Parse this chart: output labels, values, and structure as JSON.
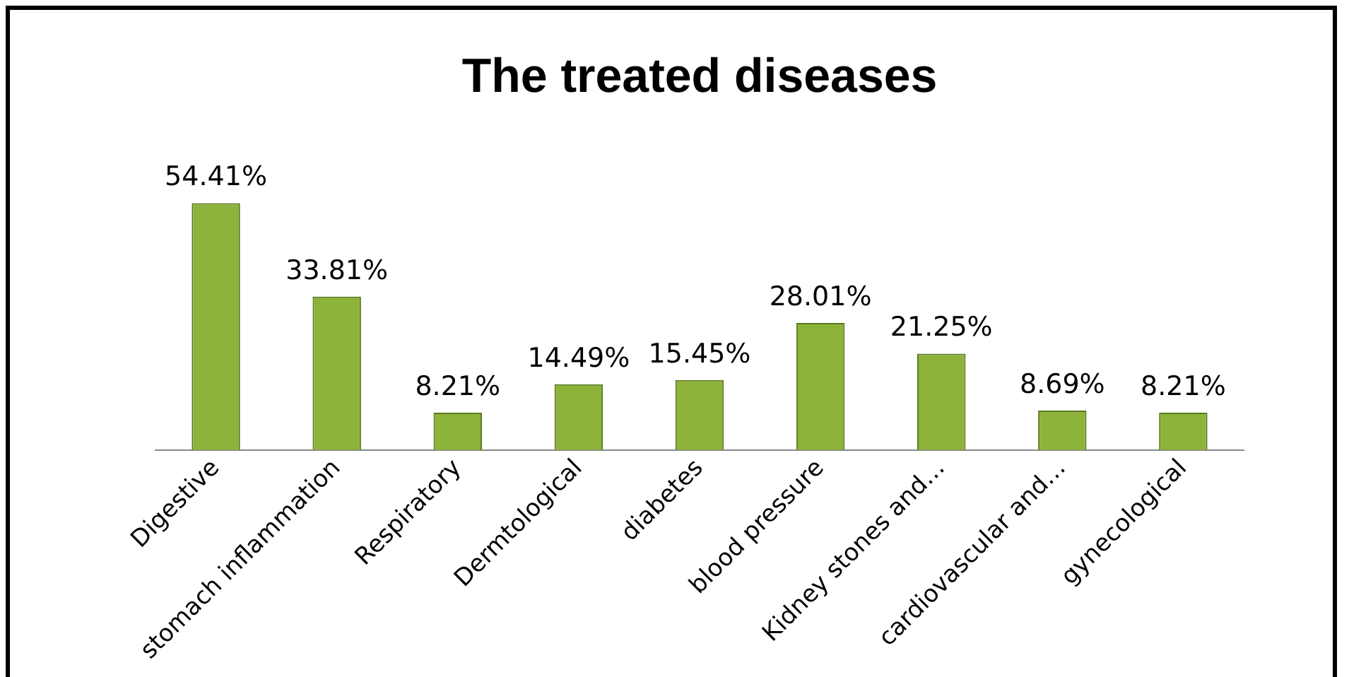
{
  "chart_data": {
    "type": "bar",
    "title": "The treated diseases",
    "categories": [
      "Digestive",
      "stomach inflammation",
      "Respiratory",
      "Dermtological",
      "diabetes",
      "blood pressure",
      "Kidney stones and…",
      "cardiovascular and…",
      "gynecological"
    ],
    "values": [
      54.41,
      33.81,
      8.21,
      14.49,
      15.45,
      28.01,
      21.25,
      8.69,
      8.21
    ],
    "value_labels": [
      "54.41%",
      "33.81%",
      "8.21%",
      "14.49%",
      "15.45%",
      "28.01%",
      "21.25%",
      "8.69%",
      "8.21%"
    ],
    "color": "#8db33a",
    "grid": false,
    "legend": false
  }
}
